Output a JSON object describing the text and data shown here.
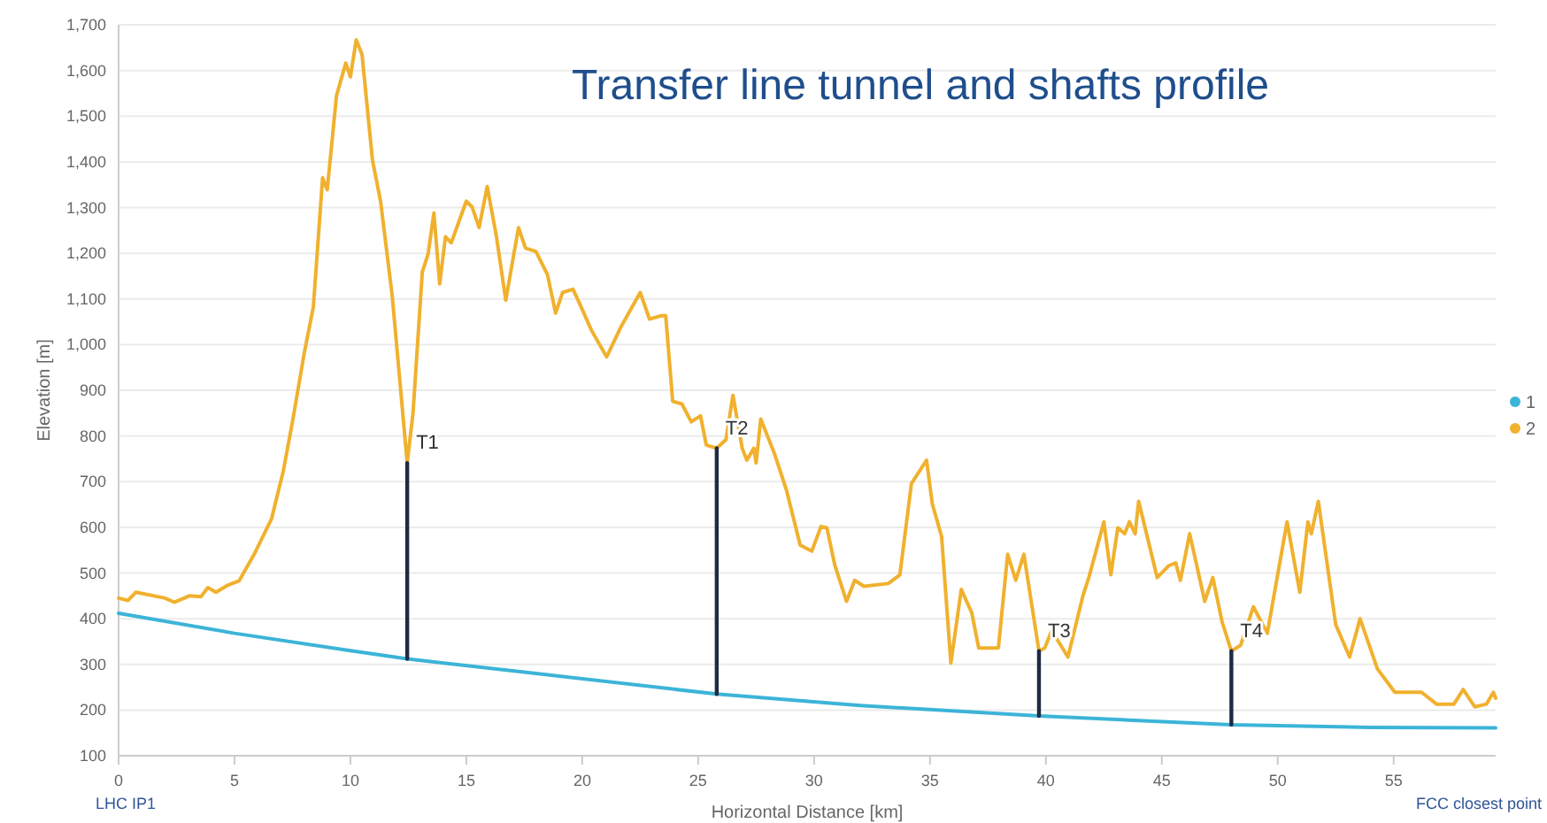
{
  "chart_data": {
    "type": "line",
    "title": "Transfer line tunnel and shafts profile",
    "xlabel": "Horizontal Distance [km]",
    "ylabel": "Elevation [m]",
    "xlim": [
      0,
      59.4
    ],
    "ylim": [
      100,
      1700
    ],
    "xticks": [
      0,
      5,
      10,
      15,
      20,
      25,
      30,
      35,
      40,
      45,
      50,
      55
    ],
    "yticks": [
      100,
      200,
      300,
      400,
      500,
      600,
      700,
      800,
      900,
      {
        "value": 1000,
        "label": "1,000"
      },
      {
        "value": 1100,
        "label": "1,100"
      },
      {
        "value": 1200,
        "label": "1,200"
      },
      {
        "value": 1300,
        "label": "1,300"
      },
      {
        "value": 1400,
        "label": "1,400"
      },
      {
        "value": 1500,
        "label": "1,500"
      },
      {
        "value": 1600,
        "label": "1,600"
      },
      {
        "value": 1700,
        "label": "1,700"
      }
    ],
    "grid": "y",
    "legend": "right",
    "marker": "none",
    "line_style": "solid",
    "series": [
      {
        "name": "1",
        "color": "#3cb4d8",
        "x": [
          0,
          5,
          10,
          12.45,
          18,
          25.8,
          32,
          39.7,
          48,
          54,
          59.4
        ],
        "values": [
          412,
          368,
          330,
          312,
          280,
          235,
          210,
          187,
          168,
          162,
          161
        ]
      },
      {
        "name": "2",
        "color": "#f0b12e",
        "x": [
          0,
          0.4,
          0.75,
          2.0,
          2.4,
          3.05,
          3.55,
          3.85,
          4.2,
          4.7,
          5.2,
          5.85,
          6.6,
          7.1,
          7.5,
          8.0,
          8.4,
          8.8,
          9.0,
          9.4,
          9.8,
          10.0,
          10.25,
          10.5,
          10.95,
          11.3,
          11.8,
          12.45,
          12.7,
          13.1,
          13.35,
          13.6,
          13.85,
          14.1,
          14.35,
          15.0,
          15.25,
          15.55,
          15.9,
          16.3,
          16.7,
          17.25,
          17.55,
          18.0,
          18.5,
          18.85,
          19.15,
          19.6,
          19.9,
          20.4,
          21.05,
          21.65,
          22.5,
          22.9,
          23.4,
          23.6,
          23.9,
          24.3,
          24.7,
          25.1,
          25.35,
          25.8,
          26.2,
          26.5,
          26.9,
          27.1,
          27.4,
          27.5,
          27.7,
          28.3,
          28.8,
          29.4,
          29.9,
          30.3,
          30.55,
          30.9,
          31.4,
          31.75,
          32.15,
          33.2,
          33.7,
          34.2,
          34.85,
          35.1,
          35.5,
          35.9,
          36.35,
          36.8,
          37.1,
          37.95,
          38.35,
          38.7,
          39.05,
          39.7,
          39.95,
          40.25,
          40.95,
          41.2,
          41.6,
          41.85,
          42.5,
          42.8,
          43.1,
          43.4,
          43.6,
          43.85,
          44.0,
          44.8,
          45.3,
          45.6,
          45.8,
          46.2,
          46.85,
          47.2,
          47.6,
          48.0,
          48.4,
          48.95,
          49.55,
          50.4,
          50.95,
          51.3,
          51.45,
          51.75,
          52.5,
          53.1,
          53.55,
          54.3,
          55.05,
          56.2,
          56.85,
          57.6,
          58.0,
          58.5,
          59.0,
          59.3,
          59.4
        ],
        "values": [
          445,
          440,
          458,
          445,
          436,
          450,
          448,
          468,
          458,
          473,
          483,
          541,
          619,
          722,
          831,
          979,
          1082,
          1365,
          1339,
          1545,
          1616,
          1586,
          1667,
          1635,
          1404,
          1314,
          1108,
          741,
          850,
          1159,
          1198,
          1288,
          1133,
          1236,
          1223,
          1314,
          1301,
          1256,
          1346,
          1236,
          1097,
          1256,
          1211,
          1204,
          1153,
          1069,
          1114,
          1121,
          1088,
          1031,
          973,
          1037,
          1114,
          1056,
          1063,
          1063,
          876,
          870,
          831,
          844,
          780,
          773,
          792,
          889,
          773,
          747,
          773,
          741,
          837,
          760,
          683,
          561,
          548,
          602,
          599,
          516,
          438,
          484,
          471,
          477,
          496,
          696,
          747,
          651,
          580,
          303,
          464,
          413,
          336,
          336,
          541,
          484,
          541,
          329,
          336,
          374,
          316,
          368,
          451,
          490,
          612,
          496,
          599,
          586,
          612,
          586,
          657,
          490,
          516,
          522,
          484,
          586,
          438,
          490,
          393,
          329,
          342,
          426,
          368,
          612,
          458,
          612,
          586,
          657,
          387,
          316,
          400,
          290,
          239,
          239,
          213,
          213,
          245,
          207,
          213,
          239,
          226
        ]
      },
      {
        "color": "#1f2a44",
        "x": [
          12.45,
          12.45
        ],
        "values": [
          312,
          741
        ]
      },
      {
        "color": "#1f2a44",
        "x": [
          25.8,
          25.8
        ],
        "values": [
          235,
          773
        ]
      },
      {
        "color": "#1f2a44",
        "x": [
          39.7,
          39.7
        ],
        "values": [
          187,
          329
        ]
      },
      {
        "color": "#1f2a44",
        "x": [
          48.0,
          48.0
        ],
        "values": [
          168,
          329
        ]
      }
    ],
    "annotations": [
      {
        "text": "T1",
        "x": 12.45,
        "y": 741
      },
      {
        "text": "T2",
        "x": 25.8,
        "y": 773
      },
      {
        "text": "T3",
        "x": 39.7,
        "y": 329
      },
      {
        "text": "T4",
        "x": 48.0,
        "y": 329
      },
      "LHC IP1",
      "FCC closest point"
    ]
  }
}
